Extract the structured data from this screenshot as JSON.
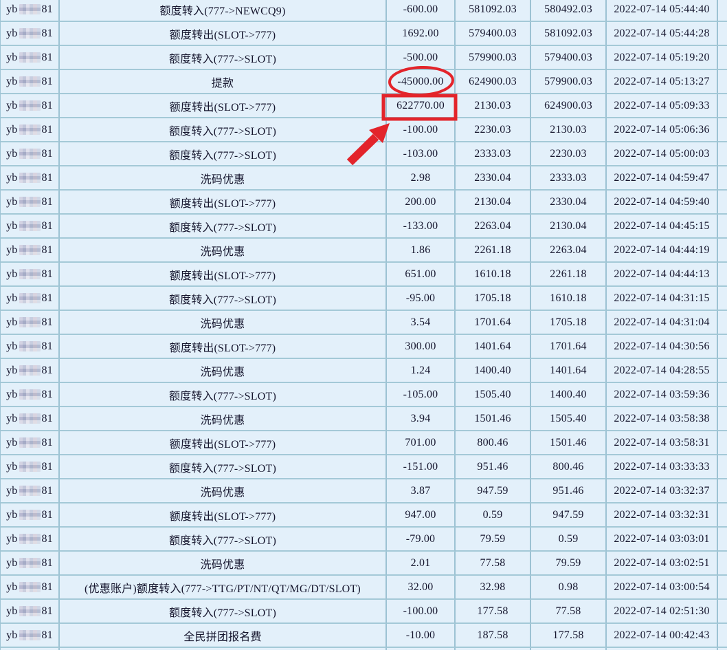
{
  "table": {
    "user_prefix": "yb",
    "user_suffix": "81",
    "rows": [
      {
        "type": "额度转入(777->NEWCQ9)",
        "amount": "-600.00",
        "balance_before": "581092.03",
        "balance_after": "580492.03",
        "time": "2022-07-14 05:44:40"
      },
      {
        "type": "额度转出(SLOT->777)",
        "amount": "1692.00",
        "balance_before": "579400.03",
        "balance_after": "581092.03",
        "time": "2022-07-14 05:44:28"
      },
      {
        "type": "额度转入(777->SLOT)",
        "amount": "-500.00",
        "balance_before": "579900.03",
        "balance_after": "579400.03",
        "time": "2022-07-14 05:19:20"
      },
      {
        "type": "提款",
        "amount": "-45000.00",
        "balance_before": "624900.03",
        "balance_after": "579900.03",
        "time": "2022-07-14 05:13:27",
        "highlight": "ellipse"
      },
      {
        "type": "额度转出(SLOT->777)",
        "amount": "622770.00",
        "balance_before": "2130.03",
        "balance_after": "624900.03",
        "time": "2022-07-14 05:09:33",
        "highlight": "box"
      },
      {
        "type": "额度转入(777->SLOT)",
        "amount": "-100.00",
        "balance_before": "2230.03",
        "balance_after": "2130.03",
        "time": "2022-07-14 05:06:36"
      },
      {
        "type": "额度转入(777->SLOT)",
        "amount": "-103.00",
        "balance_before": "2333.03",
        "balance_after": "2230.03",
        "time": "2022-07-14 05:00:03"
      },
      {
        "type": "洗码优惠",
        "amount": "2.98",
        "balance_before": "2330.04",
        "balance_after": "2333.03",
        "time": "2022-07-14 04:59:47"
      },
      {
        "type": "额度转出(SLOT->777)",
        "amount": "200.00",
        "balance_before": "2130.04",
        "balance_after": "2330.04",
        "time": "2022-07-14 04:59:40"
      },
      {
        "type": "额度转入(777->SLOT)",
        "amount": "-133.00",
        "balance_before": "2263.04",
        "balance_after": "2130.04",
        "time": "2022-07-14 04:45:15"
      },
      {
        "type": "洗码优惠",
        "amount": "1.86",
        "balance_before": "2261.18",
        "balance_after": "2263.04",
        "time": "2022-07-14 04:44:19"
      },
      {
        "type": "额度转出(SLOT->777)",
        "amount": "651.00",
        "balance_before": "1610.18",
        "balance_after": "2261.18",
        "time": "2022-07-14 04:44:13"
      },
      {
        "type": "额度转入(777->SLOT)",
        "amount": "-95.00",
        "balance_before": "1705.18",
        "balance_after": "1610.18",
        "time": "2022-07-14 04:31:15"
      },
      {
        "type": "洗码优惠",
        "amount": "3.54",
        "balance_before": "1701.64",
        "balance_after": "1705.18",
        "time": "2022-07-14 04:31:04"
      },
      {
        "type": "额度转出(SLOT->777)",
        "amount": "300.00",
        "balance_before": "1401.64",
        "balance_after": "1701.64",
        "time": "2022-07-14 04:30:56"
      },
      {
        "type": "洗码优惠",
        "amount": "1.24",
        "balance_before": "1400.40",
        "balance_after": "1401.64",
        "time": "2022-07-14 04:28:55"
      },
      {
        "type": "额度转入(777->SLOT)",
        "amount": "-105.00",
        "balance_before": "1505.40",
        "balance_after": "1400.40",
        "time": "2022-07-14 03:59:36"
      },
      {
        "type": "洗码优惠",
        "amount": "3.94",
        "balance_before": "1501.46",
        "balance_after": "1505.40",
        "time": "2022-07-14 03:58:38"
      },
      {
        "type": "额度转出(SLOT->777)",
        "amount": "701.00",
        "balance_before": "800.46",
        "balance_after": "1501.46",
        "time": "2022-07-14 03:58:31"
      },
      {
        "type": "额度转入(777->SLOT)",
        "amount": "-151.00",
        "balance_before": "951.46",
        "balance_after": "800.46",
        "time": "2022-07-14 03:33:33"
      },
      {
        "type": "洗码优惠",
        "amount": "3.87",
        "balance_before": "947.59",
        "balance_after": "951.46",
        "time": "2022-07-14 03:32:37"
      },
      {
        "type": "额度转出(SLOT->777)",
        "amount": "947.00",
        "balance_before": "0.59",
        "balance_after": "947.59",
        "time": "2022-07-14 03:32:31"
      },
      {
        "type": "额度转入(777->SLOT)",
        "amount": "-79.00",
        "balance_before": "79.59",
        "balance_after": "0.59",
        "time": "2022-07-14 03:03:01"
      },
      {
        "type": "洗码优惠",
        "amount": "2.01",
        "balance_before": "77.58",
        "balance_after": "79.59",
        "time": "2022-07-14 03:02:51"
      },
      {
        "type": "(优惠账户)额度转入(777->TTG/PT/NT/QT/MG/DT/SLOT)",
        "amount": "32.00",
        "balance_before": "32.98",
        "balance_after": "0.98",
        "time": "2022-07-14 03:00:54"
      },
      {
        "type": "额度转入(777->SLOT)",
        "amount": "-100.00",
        "balance_before": "177.58",
        "balance_after": "77.58",
        "time": "2022-07-14 02:51:30"
      },
      {
        "type": "全民拼团报名费",
        "amount": "-10.00",
        "balance_before": "187.58",
        "balance_after": "177.58",
        "time": "2022-07-14 00:42:43"
      }
    ]
  },
  "annotations": {
    "circled_value": "-45000.00",
    "boxed_value": "622770.00",
    "color": "#e3242b"
  },
  "colors": {
    "cell_background": "#e3f0fa",
    "grid_border": "#9cc2d3",
    "text": "#16162e"
  }
}
